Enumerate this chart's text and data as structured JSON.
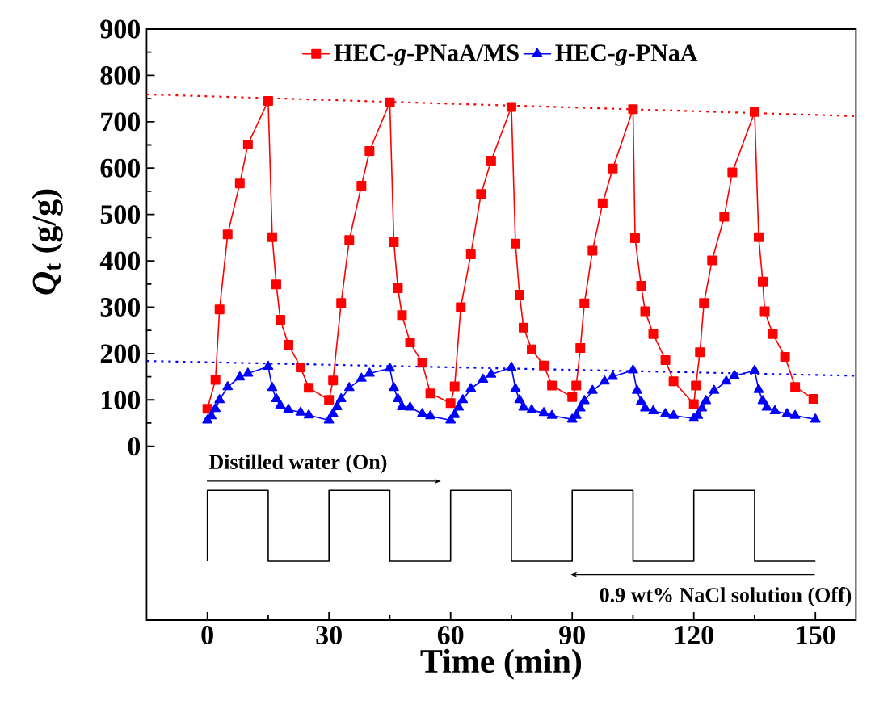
{
  "chart_data": {
    "type": "line",
    "xlabel": "Time (min)",
    "ylabel": "*Q*$_{t}$ (g/g)",
    "xlim": [
      -15,
      160
    ],
    "xticks": [
      0,
      30,
      60,
      90,
      120,
      150
    ],
    "ylim": [
      -375,
      900
    ],
    "yticks": [
      0,
      100,
      200,
      300,
      400,
      500,
      600,
      700,
      800,
      900
    ],
    "legend": "top",
    "grid": false,
    "annotations": [
      "Distilled water (On)",
      "0.9 wt% NaCl solution (Off)"
    ],
    "series": [
      {
        "name": "HEC-*g*-PNaA/MS",
        "color": "#ff0000",
        "marker": "square",
        "line_style": "solid",
        "x": [
          0,
          2,
          3,
          5,
          8,
          10,
          15,
          16,
          17,
          18,
          20,
          23,
          25,
          30,
          31,
          33,
          35,
          38,
          40,
          45,
          46,
          47,
          48,
          50,
          53,
          55,
          60,
          61,
          62.5,
          65,
          67.5,
          70,
          75,
          76,
          77,
          78,
          80,
          83,
          85,
          90,
          91,
          92,
          93,
          95,
          97.5,
          100,
          105,
          105.5,
          107,
          108,
          110,
          113,
          115,
          120,
          120.5,
          121.5,
          122.5,
          124.5,
          127.5,
          129.5,
          135,
          136,
          137,
          137.5,
          139.5,
          142.5,
          145,
          149.5
        ],
        "values": [
          81,
          143,
          295,
          457,
          567,
          651,
          745,
          451,
          349,
          273,
          219,
          170,
          126,
          100,
          142,
          309,
          445,
          562,
          637,
          742,
          440,
          341,
          283,
          224,
          180,
          114,
          93,
          129,
          300,
          414,
          544,
          616,
          732,
          437,
          327,
          256,
          209,
          174,
          131,
          106,
          131,
          212,
          308,
          422,
          524,
          599,
          727,
          449,
          346,
          291,
          242,
          186,
          140,
          91,
          131,
          203,
          309,
          401,
          495,
          591,
          721,
          451,
          355,
          291,
          242,
          193,
          128,
          102
        ]
      },
      {
        "name": "HEC-*g*-PNaA",
        "color": "#0000ff",
        "marker": "triangle",
        "line_style": "solid",
        "x": [
          0,
          1,
          2,
          3,
          5,
          8,
          10,
          15,
          16,
          17,
          18,
          20,
          23,
          25,
          30,
          31,
          32,
          33,
          35,
          38,
          40,
          45,
          46,
          47,
          48,
          50,
          53,
          55,
          60,
          61,
          62,
          63,
          65,
          68,
          70,
          75,
          76,
          77,
          78,
          80,
          83,
          85,
          90,
          91,
          92,
          93,
          95,
          98,
          100,
          105,
          106,
          107,
          108,
          110,
          113,
          115,
          120,
          121,
          122,
          123,
          125,
          128,
          130,
          135,
          136,
          137,
          138,
          140,
          143,
          145,
          150
        ],
        "values": [
          56,
          65,
          81,
          100,
          128,
          149,
          157,
          172,
          126,
          102,
          88,
          79,
          73,
          67,
          56,
          70,
          85,
          102,
          126,
          146,
          157,
          168,
          126,
          102,
          85,
          84,
          70,
          65,
          56,
          68,
          84,
          100,
          124,
          144,
          155,
          170,
          124,
          100,
          84,
          78,
          72,
          66,
          58,
          66,
          82,
          98,
          120,
          140,
          150,
          164,
          120,
          96,
          82,
          76,
          70,
          66,
          60,
          66,
          82,
          98,
          120,
          140,
          152,
          163,
          122,
          98,
          84,
          76,
          70,
          66,
          58
        ]
      },
      {
        "type": "line",
        "color": "#ff0000",
        "marker": "none",
        "line_style": "dotted",
        "x": [
          -15,
          160
        ],
        "values": [
          759,
          712
        ]
      },
      {
        "type": "line",
        "color": "#0000ff",
        "marker": "none",
        "line_style": "dotted",
        "x": [
          -15,
          160
        ],
        "values": [
          184,
          152
        ]
      },
      {
        "type": "step",
        "color": "#000000",
        "marker": "none",
        "line_style": "solid",
        "x": [
          0,
          0,
          15,
          30,
          45,
          60,
          75,
          90,
          105,
          120,
          135,
          150
        ],
        "values": [
          -248,
          -95,
          -248,
          -95,
          -248,
          -95,
          -248,
          -95,
          -248,
          -95,
          -248,
          -248
        ]
      }
    ]
  }
}
